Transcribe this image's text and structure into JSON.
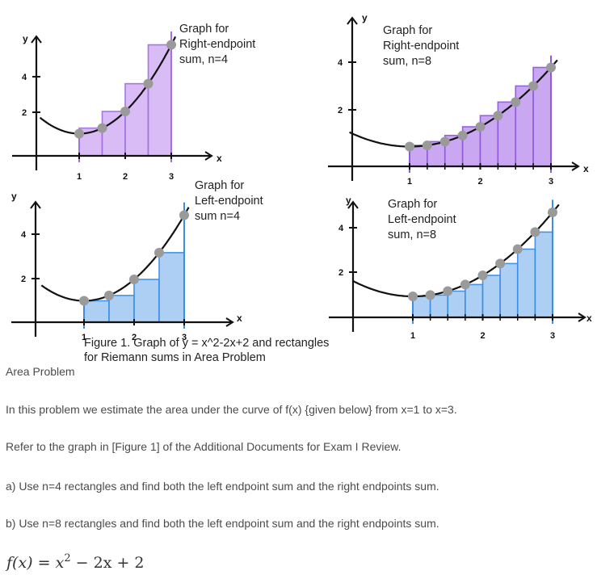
{
  "figure": {
    "panels": [
      {
        "id": "tl",
        "title_lines": [
          "Graph for",
          "Right-endpoint",
          "sum, n=4"
        ],
        "rule": "right",
        "n": 4,
        "y_axis": "y",
        "x_axis": "x",
        "x_ticks": [
          "1",
          "2",
          "3"
        ],
        "y_ticks": [
          "2",
          "4"
        ],
        "fill": "#d8b8f5",
        "stroke": "#a270e0"
      },
      {
        "id": "tr",
        "title_lines": [
          "Graph for",
          "Right-endpoint",
          "sum, n=8"
        ],
        "rule": "right",
        "n": 8,
        "y_axis": "y",
        "x_axis": "x",
        "x_ticks": [
          "1",
          "2",
          "3"
        ],
        "y_ticks": [
          "2",
          "4"
        ],
        "fill": "#c7a3f1",
        "stroke": "#8f5ad8"
      },
      {
        "id": "bl",
        "title_lines": [
          "Graph for",
          "Left-endpoint",
          "sum n=4"
        ],
        "rule": "left",
        "n": 4,
        "y_axis": "y",
        "x_axis": "x",
        "x_ticks": [
          "1",
          "2",
          "3"
        ],
        "y_ticks": [
          "2",
          "4"
        ],
        "fill": "#a9cdf4",
        "stroke": "#3b8ee6"
      },
      {
        "id": "br",
        "title_lines": [
          "Graph for",
          "Left-endpoint",
          "sum, n=8"
        ],
        "rule": "left",
        "n": 8,
        "y_axis": "y",
        "x_axis": "x",
        "x_ticks": [
          "1",
          "2",
          "3"
        ],
        "y_ticks": [
          "2",
          "4"
        ],
        "fill": "#a9cdf4",
        "stroke": "#3b8ee6"
      }
    ],
    "caption_lines": [
      "Figure 1.  Graph of y = x^2-2x+2 and rectangles",
      "for Riemann sums in Area Problem"
    ],
    "curve_color": "#111111",
    "dot_color": "#9a9a9a"
  },
  "content": {
    "heading": "Area Problem",
    "p1": "In this problem we estimate the area under the curve of f(x) {given below} from x=1 to x=3.",
    "p2": "Refer to the graph in [Figure 1] of the Additional Documents for Exam I Review.",
    "p3": "a) Use n=4 rectangles and find both the left endpoint sum and the right endpoints sum.",
    "p4": "b)  Use n=8 rectangles and find both the left endpoint sum and the right endpoints sum.",
    "formula": {
      "lhs": "f(x)",
      "equals": "=",
      "x": "x",
      "exp": "2",
      "rest": "− 2x + 2"
    }
  }
}
